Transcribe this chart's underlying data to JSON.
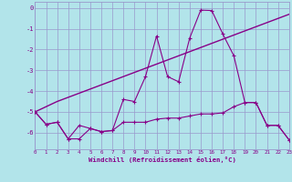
{
  "xlabel": "Windchill (Refroidissement éolien,°C)",
  "background_color": "#b2e4ea",
  "grid_color": "#9999cc",
  "line_color": "#880088",
  "x_values": [
    0,
    1,
    2,
    3,
    4,
    5,
    6,
    7,
    8,
    9,
    10,
    11,
    12,
    13,
    14,
    15,
    16,
    17,
    18,
    19,
    20,
    21,
    22,
    23
  ],
  "y_curve_jagged": [
    -5.0,
    -5.6,
    -5.5,
    -6.3,
    -6.3,
    -5.8,
    -5.95,
    -5.9,
    -5.5,
    -5.5,
    -5.5,
    -5.35,
    -5.3,
    -5.3,
    -5.2,
    -5.1,
    -5.1,
    -5.05,
    -4.75,
    -4.55,
    -4.55,
    -5.65,
    -5.65,
    -6.35
  ],
  "y_curve_wavy": [
    -5.0,
    -5.6,
    -5.5,
    -6.3,
    -5.65,
    -5.8,
    -5.95,
    -5.9,
    -4.4,
    -4.5,
    -3.3,
    -1.35,
    -3.3,
    -3.55,
    -1.45,
    -0.1,
    -0.12,
    -1.25,
    -2.3,
    -4.55,
    -4.55,
    -5.65,
    -5.65,
    -6.35
  ],
  "y_linear": [
    -5.0,
    -4.75,
    -4.5,
    -4.3,
    -4.1,
    -3.9,
    -3.7,
    -3.5,
    -3.3,
    -3.1,
    -2.9,
    -2.7,
    -2.5,
    -2.3,
    -2.1,
    -1.9,
    -1.7,
    -1.5,
    -1.3,
    -1.1,
    -0.9,
    -0.7,
    -0.5,
    -0.3
  ],
  "ylim": [
    -6.8,
    0.3
  ],
  "xlim": [
    0,
    23
  ],
  "yticks": [
    0,
    -1,
    -2,
    -3,
    -4,
    -5,
    -6
  ],
  "xticks": [
    0,
    1,
    2,
    3,
    4,
    5,
    6,
    7,
    8,
    9,
    10,
    11,
    12,
    13,
    14,
    15,
    16,
    17,
    18,
    19,
    20,
    21,
    22,
    23
  ]
}
